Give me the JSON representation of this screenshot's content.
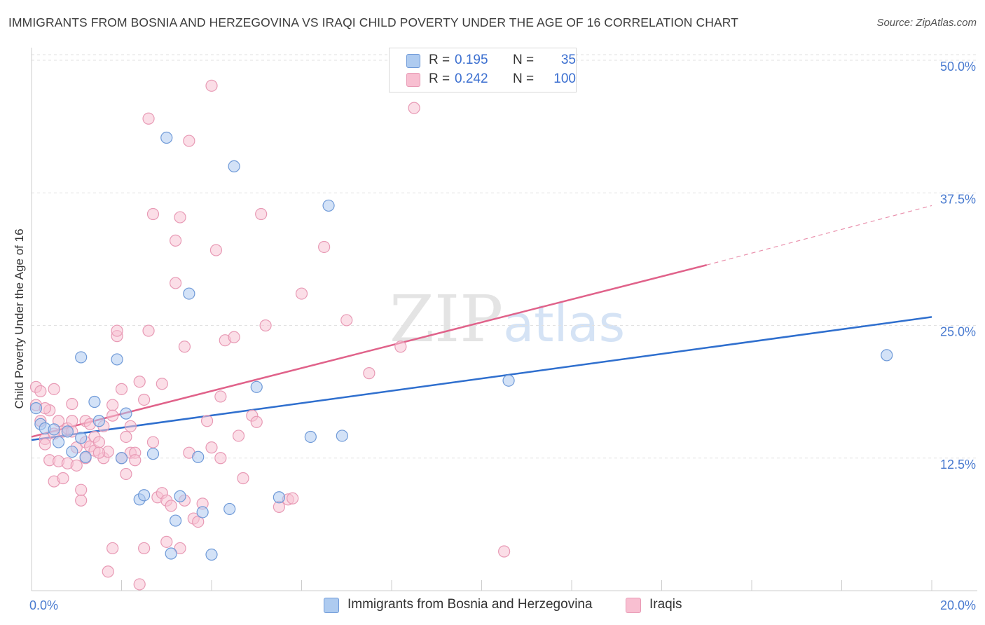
{
  "title": "IMMIGRANTS FROM BOSNIA AND HERZEGOVINA VS IRAQI CHILD POVERTY UNDER THE AGE OF 16 CORRELATION CHART",
  "source": "Source: ZipAtlas.com",
  "watermark": {
    "zip": "ZIP",
    "atlas": "atlas"
  },
  "legend_top": {
    "rows": [
      {
        "r_label": "R =",
        "r_value": "0.195",
        "n_label": "N =",
        "n_value": "35",
        "color": "#aecbf0"
      },
      {
        "r_label": "R =",
        "r_value": "0.242",
        "n_label": "N =",
        "n_value": "100",
        "color": "#f8bfd1"
      }
    ]
  },
  "legend_bottom": [
    {
      "label": "Immigrants from Bosnia and Herzegovina",
      "color": "#aecbf0"
    },
    {
      "label": "Iraqis",
      "color": "#f8bfd1"
    }
  ],
  "colors": {
    "blue_line": "#2f6fce",
    "pink_line": "#e0628a",
    "blue_fill": "#aecbf0",
    "pink_fill": "#f8c3d4",
    "blue_stroke": "#6f9ad8",
    "pink_stroke": "#e89ab5",
    "tick_text": "#4a7bd0",
    "grid": "#e2e2e2"
  },
  "chart_data": {
    "type": "scatter",
    "title": "IMMIGRANTS FROM BOSNIA AND HERZEGOVINA VS IRAQI CHILD POVERTY UNDER THE AGE OF 16 CORRELATION CHART",
    "xlabel": "",
    "ylabel": "Child Poverty Under the Age of 16",
    "xlim": [
      0,
      20
    ],
    "ylim": [
      0,
      50
    ],
    "x_tick_labels": [
      "0.0%",
      "20.0%"
    ],
    "y_ticks": [
      12.5,
      25.0,
      37.5,
      50.0
    ],
    "y_tick_labels": [
      "12.5%",
      "25.0%",
      "37.5%",
      "50.0%"
    ],
    "grid": true,
    "legend_position": "top-center",
    "series": [
      {
        "name": "Immigrants from Bosnia and Herzegovina",
        "R": 0.195,
        "N": 35,
        "trend": {
          "x0": 0,
          "y0": 14.2,
          "x1": 20,
          "y1": 25.8
        },
        "points": [
          [
            0.1,
            17.2
          ],
          [
            0.2,
            15.7
          ],
          [
            0.3,
            15.3
          ],
          [
            0.5,
            15.2
          ],
          [
            0.6,
            14.0
          ],
          [
            0.8,
            15.0
          ],
          [
            0.9,
            13.1
          ],
          [
            1.1,
            14.4
          ],
          [
            1.2,
            12.6
          ],
          [
            1.4,
            17.8
          ],
          [
            1.5,
            16.0
          ],
          [
            1.9,
            21.8
          ],
          [
            2.0,
            12.5
          ],
          [
            2.1,
            16.7
          ],
          [
            2.4,
            8.6
          ],
          [
            2.5,
            9.0
          ],
          [
            1.1,
            22.0
          ],
          [
            2.7,
            12.9
          ],
          [
            3.0,
            42.7
          ],
          [
            3.1,
            3.5
          ],
          [
            3.2,
            6.6
          ],
          [
            3.3,
            8.9
          ],
          [
            3.5,
            28.0
          ],
          [
            3.7,
            12.6
          ],
          [
            3.8,
            7.4
          ],
          [
            4.0,
            3.4
          ],
          [
            4.4,
            7.7
          ],
          [
            4.5,
            40.0
          ],
          [
            5.0,
            19.2
          ],
          [
            5.5,
            8.8
          ],
          [
            6.2,
            14.5
          ],
          [
            6.6,
            36.3
          ],
          [
            6.9,
            14.6
          ],
          [
            10.6,
            19.8
          ],
          [
            19.0,
            22.2
          ]
        ]
      },
      {
        "name": "Iraqis",
        "R": 0.242,
        "N": 100,
        "trend": {
          "x0": 0,
          "y0": 14.5,
          "x1": 15.0,
          "y1": 30.7,
          "dash_x1": 20,
          "dash_y1": 36.3
        },
        "points": [
          [
            0.1,
            17.5
          ],
          [
            0.1,
            19.2
          ],
          [
            0.2,
            16.0
          ],
          [
            0.2,
            18.8
          ],
          [
            0.3,
            14.3
          ],
          [
            0.3,
            13.8
          ],
          [
            0.4,
            12.3
          ],
          [
            0.4,
            17.0
          ],
          [
            0.5,
            10.3
          ],
          [
            0.5,
            19.0
          ],
          [
            0.6,
            12.2
          ],
          [
            0.6,
            16.0
          ],
          [
            0.7,
            15.0
          ],
          [
            0.7,
            10.6
          ],
          [
            0.8,
            15.3
          ],
          [
            0.8,
            12.0
          ],
          [
            0.9,
            17.6
          ],
          [
            0.9,
            15.0
          ],
          [
            1.0,
            13.5
          ],
          [
            1.0,
            11.8
          ],
          [
            1.1,
            8.5
          ],
          [
            1.1,
            9.5
          ],
          [
            1.2,
            16.0
          ],
          [
            1.2,
            14.0
          ],
          [
            1.3,
            15.7
          ],
          [
            1.3,
            13.6
          ],
          [
            1.4,
            14.5
          ],
          [
            1.4,
            13.2
          ],
          [
            1.5,
            14.0
          ],
          [
            1.6,
            12.5
          ],
          [
            1.6,
            15.5
          ],
          [
            1.7,
            13.1
          ],
          [
            1.8,
            17.5
          ],
          [
            1.8,
            16.5
          ],
          [
            1.9,
            24.0
          ],
          [
            1.9,
            24.5
          ],
          [
            2.0,
            19.0
          ],
          [
            2.1,
            11.0
          ],
          [
            2.1,
            14.5
          ],
          [
            2.2,
            13.0
          ],
          [
            2.3,
            13.0
          ],
          [
            2.3,
            12.3
          ],
          [
            2.4,
            19.7
          ],
          [
            2.5,
            18.0
          ],
          [
            2.6,
            24.5
          ],
          [
            2.6,
            44.5
          ],
          [
            2.7,
            35.5
          ],
          [
            2.7,
            14.0
          ],
          [
            2.8,
            8.8
          ],
          [
            2.9,
            9.2
          ],
          [
            3.0,
            8.5
          ],
          [
            3.0,
            4.6
          ],
          [
            3.1,
            8.0
          ],
          [
            3.2,
            33.0
          ],
          [
            3.2,
            29.0
          ],
          [
            3.3,
            35.2
          ],
          [
            3.4,
            23.0
          ],
          [
            3.5,
            42.4
          ],
          [
            3.6,
            6.8
          ],
          [
            3.7,
            6.5
          ],
          [
            3.8,
            8.2
          ],
          [
            3.9,
            16.0
          ],
          [
            4.0,
            47.6
          ],
          [
            4.0,
            13.5
          ],
          [
            4.1,
            32.1
          ],
          [
            4.2,
            18.3
          ],
          [
            4.3,
            23.6
          ],
          [
            4.5,
            23.9
          ],
          [
            4.6,
            14.6
          ],
          [
            4.7,
            10.6
          ],
          [
            4.9,
            16.5
          ],
          [
            5.0,
            15.9
          ],
          [
            5.1,
            35.5
          ],
          [
            5.2,
            25.0
          ],
          [
            5.5,
            7.9
          ],
          [
            5.7,
            8.6
          ],
          [
            5.8,
            8.7
          ],
          [
            6.0,
            28.0
          ],
          [
            6.5,
            32.4
          ],
          [
            7.0,
            25.5
          ],
          [
            7.5,
            20.5
          ],
          [
            8.2,
            23.0
          ],
          [
            8.5,
            45.5
          ],
          [
            10.5,
            3.7
          ],
          [
            0.3,
            17.2
          ],
          [
            0.5,
            14.8
          ],
          [
            0.9,
            16.0
          ],
          [
            1.2,
            12.5
          ],
          [
            1.5,
            13.0
          ],
          [
            2.0,
            12.5
          ],
          [
            2.2,
            15.5
          ],
          [
            2.5,
            4.0
          ],
          [
            3.3,
            4.0
          ],
          [
            1.8,
            4.0
          ],
          [
            1.7,
            1.8
          ],
          [
            2.4,
            0.6
          ],
          [
            3.4,
            8.5
          ],
          [
            2.9,
            19.5
          ],
          [
            3.5,
            13.0
          ],
          [
            4.2,
            12.5
          ]
        ]
      }
    ]
  }
}
